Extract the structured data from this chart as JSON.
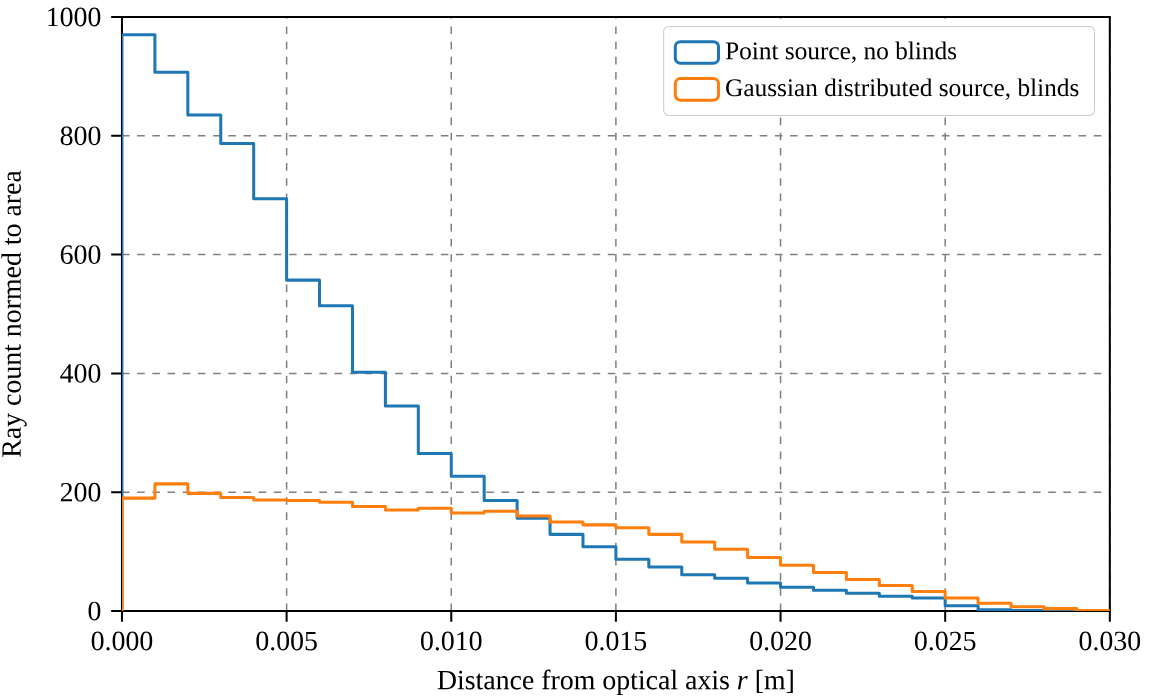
{
  "chart_data": {
    "type": "histogram",
    "xlabel": "Distance from optical axis *r* [m]",
    "ylabel": "Ray count normed to area",
    "bins": [
      0,
      0.001,
      0.002,
      0.003,
      0.004,
      0.005,
      0.006,
      0.007,
      0.008,
      0.009,
      0.01,
      0.011,
      0.012,
      0.013,
      0.014,
      0.015,
      0.016,
      0.017,
      0.018,
      0.019,
      0.02,
      0.021,
      0.022,
      0.023,
      0.024,
      0.025,
      0.026,
      0.027,
      0.028,
      0.029,
      0.03
    ],
    "series": [
      {
        "name": "Point source, no blinds",
        "color": "#1f77b4",
        "values": [
          970,
          907,
          835,
          787,
          694,
          557,
          514,
          402,
          345,
          265,
          227,
          186,
          156,
          129,
          108,
          87,
          74,
          61,
          55,
          47,
          40,
          35,
          30,
          25,
          22,
          9,
          2,
          1,
          1,
          0
        ]
      },
      {
        "name": "Gaussian distributed source, blinds",
        "color": "#ff7f0e",
        "values": [
          190,
          214,
          198,
          191,
          187,
          186,
          183,
          176,
          170,
          173,
          165,
          168,
          160,
          150,
          145,
          140,
          129,
          116,
          104,
          90,
          77,
          65,
          53,
          43,
          33,
          22,
          13,
          7,
          4,
          1
        ]
      }
    ],
    "xlim": [
      0,
      0.03
    ],
    "ylim": [
      0,
      1000
    ],
    "xticks": [
      {
        "value": 0,
        "label": "0.000"
      },
      {
        "value": 0.005,
        "label": "0.005"
      },
      {
        "value": 0.01,
        "label": "0.010"
      },
      {
        "value": 0.015,
        "label": "0.015"
      },
      {
        "value": 0.02,
        "label": "0.020"
      },
      {
        "value": 0.025,
        "label": "0.025"
      },
      {
        "value": 0.03,
        "label": "0.030"
      }
    ],
    "yticks": [
      0,
      200,
      400,
      600,
      800,
      1000
    ],
    "grid": true,
    "legend": "top right",
    "line_style": "solid"
  }
}
